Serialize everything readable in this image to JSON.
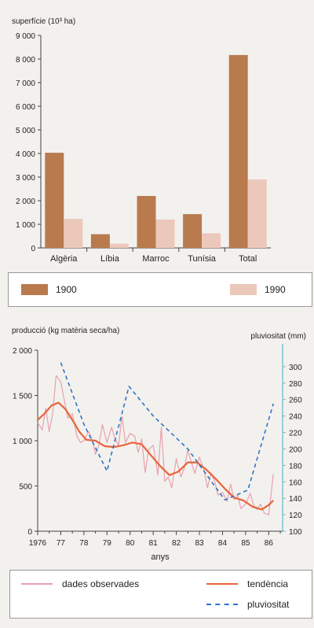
{
  "chart_data": [
    {
      "type": "bar",
      "ylabel": "superfície (10³ ha)",
      "categories": [
        "Algèria",
        "Líbia",
        "Marroc",
        "Tunísia",
        "Total"
      ],
      "yticks": [
        "0",
        "1 000",
        "2 000",
        "3 000",
        "4 000",
        "5 000",
        "6 000",
        "7 000",
        "8 000",
        "9 000"
      ],
      "ylim": [
        0,
        9000
      ],
      "grid": false,
      "series": [
        {
          "name": "1900",
          "color": "#b97a4e",
          "values": [
            4030,
            580,
            2200,
            1430,
            8170
          ]
        },
        {
          "name": "1990",
          "color": "#ecc8ba",
          "values": [
            1230,
            180,
            1200,
            620,
            2900
          ]
        }
      ],
      "legend": {
        "placement": "below",
        "items": [
          "1900",
          "1990"
        ]
      }
    },
    {
      "type": "line",
      "ylabel": "producció (kg matèria seca/ha)",
      "y2label": "pluviositat (mm)",
      "xlabel": "anys",
      "xticks": [
        "1976",
        "77",
        "78",
        "79",
        "80",
        "81",
        "82",
        "83",
        "84",
        "85",
        "86"
      ],
      "yticks": [
        "0",
        "500",
        "1 000",
        "1 500",
        "2 000"
      ],
      "y2ticks": [
        "100",
        "120",
        "140",
        "160",
        "180",
        "200",
        "220",
        "240",
        "260",
        "280",
        "300"
      ],
      "ylim": [
        0,
        2000
      ],
      "y2lim": [
        100,
        320
      ],
      "xlim": [
        1976,
        1986.6
      ],
      "series": [
        {
          "name": "dades observades",
          "axis": "left",
          "color": "#e8a0ae",
          "x": [
            1976.0,
            1976.2,
            1976.35,
            1976.5,
            1976.65,
            1976.8,
            1977.0,
            1977.15,
            1977.3,
            1977.5,
            1977.7,
            1977.85,
            1978.0,
            1978.2,
            1978.35,
            1978.5,
            1978.65,
            1978.8,
            1979.0,
            1979.2,
            1979.35,
            1979.5,
            1979.65,
            1979.8,
            1980.0,
            1980.2,
            1980.35,
            1980.5,
            1980.65,
            1980.8,
            1981.0,
            1981.2,
            1981.35,
            1981.5,
            1981.65,
            1981.8,
            1982.0,
            1982.2,
            1982.35,
            1982.5,
            1982.65,
            1982.8,
            1983.0,
            1983.2,
            1983.35,
            1983.5,
            1983.65,
            1983.8,
            1984.0,
            1984.2,
            1984.35,
            1984.5,
            1984.65,
            1984.8,
            1985.0,
            1985.2,
            1985.35,
            1985.5,
            1985.65,
            1985.8,
            1986.0,
            1986.2
          ],
          "y": [
            1200,
            1120,
            1360,
            1100,
            1300,
            1720,
            1650,
            1450,
            1250,
            1300,
            1050,
            980,
            1000,
            1100,
            1020,
            850,
            950,
            1180,
            980,
            1150,
            1020,
            950,
            1270,
            980,
            1080,
            1050,
            870,
            1020,
            650,
            900,
            950,
            620,
            1150,
            550,
            600,
            480,
            800,
            600,
            700,
            900,
            760,
            640,
            820,
            680,
            480,
            640,
            560,
            400,
            430,
            330,
            520,
            350,
            400,
            250,
            300,
            420,
            280,
            240,
            300,
            200,
            180,
            630
          ]
        },
        {
          "name": "tendència",
          "axis": "left",
          "color": "#e8643a",
          "x": [
            1976.0,
            1976.3,
            1976.6,
            1976.9,
            1977.2,
            1977.5,
            1977.8,
            1978.1,
            1978.5,
            1978.9,
            1979.3,
            1979.7,
            1980.1,
            1980.5,
            1980.9,
            1981.3,
            1981.7,
            1982.1,
            1982.5,
            1982.9,
            1983.3,
            1983.7,
            1984.1,
            1984.5,
            1984.9,
            1985.3,
            1985.7,
            1986.0,
            1986.2
          ],
          "y": [
            1230,
            1300,
            1390,
            1420,
            1350,
            1230,
            1100,
            1010,
            1000,
            940,
            930,
            950,
            980,
            960,
            840,
            720,
            620,
            660,
            760,
            760,
            680,
            580,
            470,
            370,
            340,
            270,
            240,
            290,
            340
          ]
        },
        {
          "name": "pluviositat",
          "axis": "right",
          "color": "#2f74c8",
          "dash": true,
          "x": [
            1977.0,
            1978.0,
            1979.0,
            1979.95,
            1981.0,
            1982.5,
            1984.1,
            1985.1,
            1986.2
          ],
          "y": [
            305,
            230,
            173,
            276,
            240,
            200,
            138,
            150,
            255
          ]
        }
      ],
      "legend": {
        "placement": "below",
        "items": [
          "dades observades",
          "tendència",
          "pluviositat"
        ]
      }
    }
  ]
}
